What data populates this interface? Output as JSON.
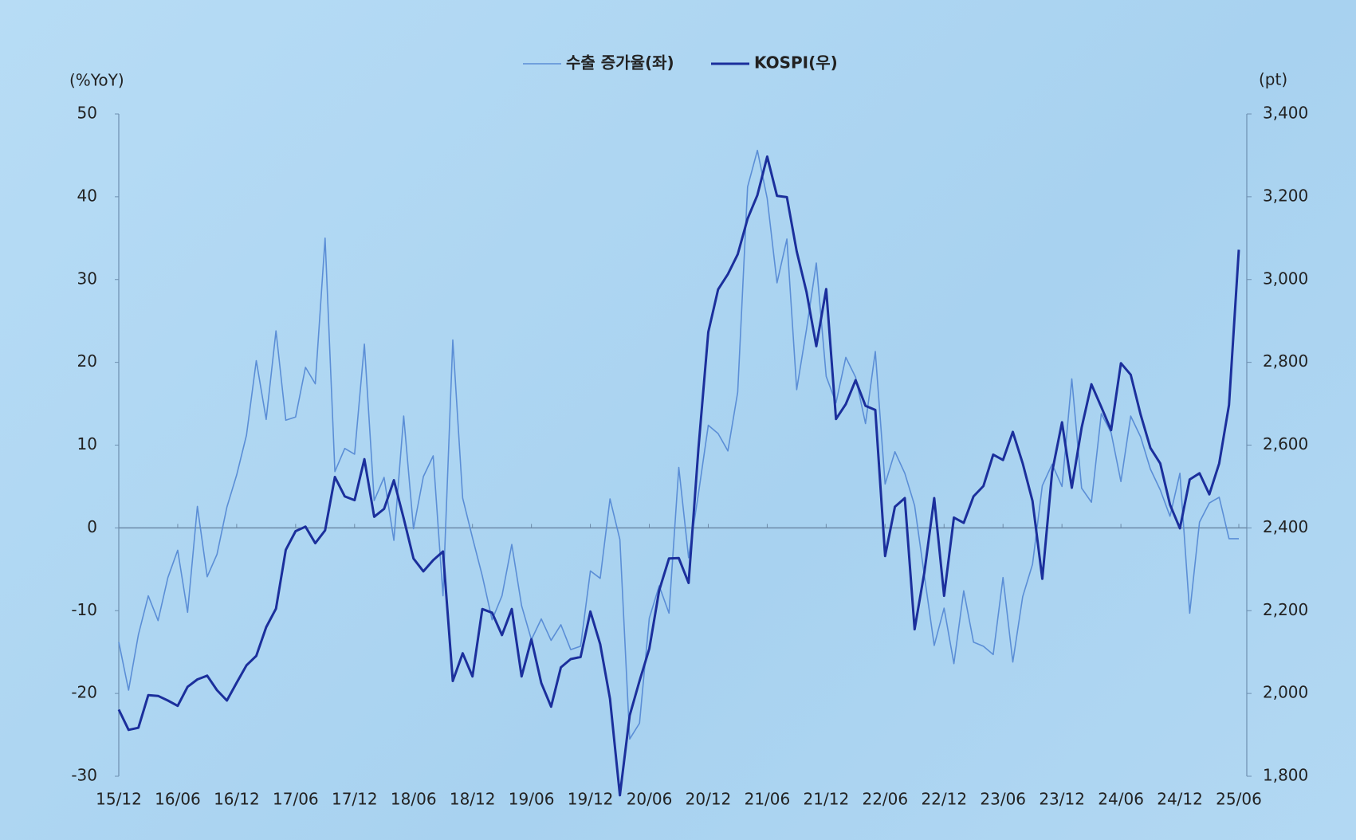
{
  "chart_data": {
    "type": "line",
    "y_label": "(%YoY)",
    "y2_label": "(pt)",
    "categories": [
      "15/12",
      null,
      null,
      null,
      null,
      null,
      "16/06",
      null,
      null,
      null,
      null,
      null,
      "16/12",
      null,
      null,
      null,
      null,
      null,
      "17/06",
      null,
      null,
      null,
      null,
      null,
      "17/12",
      null,
      null,
      null,
      null,
      null,
      "18/06",
      null,
      null,
      null,
      null,
      null,
      "18/12",
      null,
      null,
      null,
      null,
      null,
      "19/06",
      null,
      null,
      null,
      null,
      null,
      "19/12",
      null,
      null,
      null,
      null,
      null,
      "20/06",
      null,
      null,
      null,
      null,
      null,
      "20/12",
      null,
      null,
      null,
      null,
      null,
      "21/06",
      null,
      null,
      null,
      null,
      null,
      "21/12",
      null,
      null,
      null,
      null,
      null,
      "22/06",
      null,
      null,
      null,
      null,
      null,
      "22/12",
      null,
      null,
      null,
      null,
      null,
      "23/06",
      null,
      null,
      null,
      null,
      null,
      "23/12",
      null,
      null,
      null,
      null,
      null,
      "24/06",
      null,
      null,
      null,
      null,
      null,
      "24/12",
      null,
      null,
      null,
      null,
      null,
      "25/06"
    ],
    "series": [
      {
        "name": "수출 증가율(좌)",
        "color": "#5b8ed6",
        "width": 1.6,
        "values": [
          -13.8,
          -19.6,
          -12.9,
          -8.2,
          -11.2,
          -6.0,
          -2.7,
          -10.2,
          2.6,
          -5.9,
          -3.2,
          2.5,
          6.4,
          11.2,
          20.2,
          13.1,
          23.8,
          13.0,
          13.4,
          19.4,
          17.4,
          35.0,
          6.8,
          9.6,
          8.9,
          22.2,
          3.3,
          6.1,
          -1.5,
          13.5,
          -0.1,
          6.2,
          8.7,
          -8.2,
          22.7,
          3.6,
          -1.2,
          -5.8,
          -11.1,
          -8.2,
          -2.0,
          -9.4,
          -13.5,
          -11.0,
          -13.6,
          -11.7,
          -14.7,
          -14.3,
          -5.2,
          -6.1,
          3.5,
          -1.4,
          -25.5,
          -23.6,
          -10.9,
          -7.0,
          -10.3,
          7.3,
          -3.6,
          4.1,
          12.4,
          11.4,
          9.3,
          16.4,
          41.2,
          45.6,
          39.8,
          29.6,
          34.9,
          16.7,
          24.0,
          32.0,
          18.3,
          15.1,
          20.6,
          18.2,
          12.6,
          21.3,
          5.3,
          9.2,
          6.6,
          2.7,
          -5.8,
          -14.2,
          -9.7,
          -16.4,
          -7.6,
          -13.8,
          -14.3,
          -15.3,
          -6.0,
          -16.2,
          -8.3,
          -4.4,
          5.1,
          7.7,
          5.0,
          18.0,
          4.8,
          3.1,
          13.8,
          11.5,
          5.6,
          13.5,
          11.0,
          7.1,
          4.6,
          1.4,
          6.6,
          -10.3,
          0.7,
          3.0,
          3.7,
          -1.3,
          -1.3
        ]
      },
      {
        "name": "KOSPI(우)",
        "color": "#1b2f9c",
        "width": 3,
        "axis": "y2",
        "values": [
          1961,
          1912,
          1917,
          1996,
          1994,
          1983,
          1970,
          2016,
          2034,
          2043,
          2008,
          1983,
          2026,
          2068,
          2091,
          2160,
          2205,
          2347,
          2392,
          2403,
          2363,
          2394,
          2523,
          2476,
          2467,
          2566,
          2427,
          2446,
          2515,
          2423,
          2326,
          2295,
          2322,
          2343,
          2030,
          2097,
          2041,
          2204,
          2195,
          2141,
          2204,
          2041,
          2131,
          2025,
          1968,
          2063,
          2083,
          2088,
          2198,
          2119,
          1987,
          1754,
          1947,
          2030,
          2108,
          2249,
          2326,
          2327,
          2267,
          2591,
          2873,
          2976,
          3013,
          3061,
          3147,
          3204,
          3297,
          3202,
          3199,
          3068,
          2970,
          2839,
          2977,
          2663,
          2699,
          2757,
          2695,
          2685,
          2332,
          2451,
          2472,
          2155,
          2293,
          2472,
          2236,
          2425,
          2412,
          2476,
          2501,
          2577,
          2564,
          2632,
          2556,
          2465,
          2277,
          2535,
          2655,
          2497,
          2642,
          2747,
          2692,
          2636,
          2798,
          2770,
          2674,
          2593,
          2556,
          2456,
          2399,
          2517,
          2532,
          2481,
          2556,
          2697,
          3072
        ]
      }
    ],
    "ylim": [
      -30,
      50
    ],
    "yticks": [
      -30,
      -20,
      -10,
      0,
      10,
      20,
      30,
      40,
      50
    ],
    "y2lim": [
      1800,
      3400
    ],
    "y2ticks": [
      {
        "value": 1800,
        "label": "1,800"
      },
      {
        "value": 2000,
        "label": "2,000"
      },
      {
        "value": 2200,
        "label": "2,200"
      },
      {
        "value": 2400,
        "label": "2,400"
      },
      {
        "value": 2600,
        "label": "2,600"
      },
      {
        "value": 2800,
        "label": "2,800"
      },
      {
        "value": 3000,
        "label": "3,000"
      },
      {
        "value": 3200,
        "label": "3,200"
      },
      {
        "value": 3400,
        "label": "3,400"
      }
    ],
    "zero_line": true,
    "legend": "top"
  }
}
